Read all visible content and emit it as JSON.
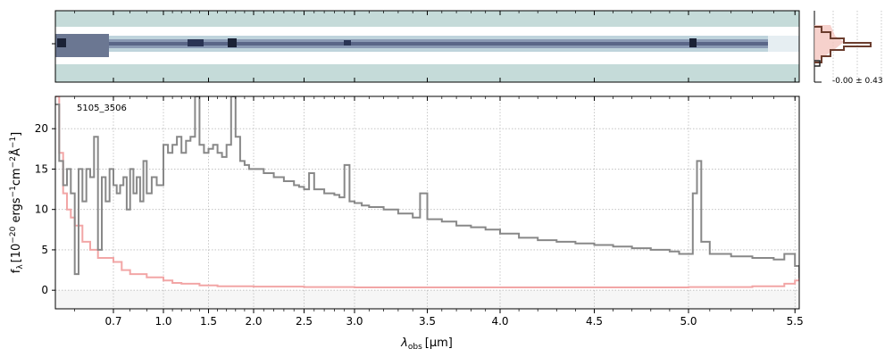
{
  "chart_data": {
    "type": "line",
    "object_id": "5105_3506",
    "xlabel_main": "λ",
    "xlabel_sub": "obs",
    "xlabel_unit": "[μm]",
    "ylabel_main": "f",
    "ylabel_sub": "λ",
    "ylabel_unit": "[10",
    "ylabel_exp": "−20",
    "ylabel_rest": " ergs",
    "ylabel_s": "−1",
    "ylabel_cm": "cm",
    "ylabel_cm_exp": "−2",
    "ylabel_A": "Å",
    "ylabel_A_exp": "−1",
    "ylabel_close": "]",
    "xlim": [
      0.55,
      5.52
    ],
    "ylim": [
      -2.3,
      24
    ],
    "xticks": [
      0.7,
      1.0,
      1.5,
      2.0,
      2.5,
      3.0,
      3.5,
      4.0,
      4.5,
      5.0,
      5.5
    ],
    "xtick_labels": [
      "0.7",
      "1.0",
      "1.5",
      "2.0",
      "2.5",
      "3.0",
      "3.5",
      "4.0",
      "4.5",
      "5.0",
      "5.5"
    ],
    "yticks": [
      0,
      5,
      10,
      15,
      20
    ],
    "ytick_labels": [
      "0",
      "5",
      "10",
      "15",
      "20"
    ],
    "grid": true,
    "series": [
      {
        "color": "#888888",
        "points": [
          [
            0.55,
            23
          ],
          [
            0.56,
            16
          ],
          [
            0.57,
            13
          ],
          [
            0.58,
            15
          ],
          [
            0.59,
            12
          ],
          [
            0.6,
            2
          ],
          [
            0.61,
            15
          ],
          [
            0.62,
            11
          ],
          [
            0.63,
            15
          ],
          [
            0.64,
            14
          ],
          [
            0.65,
            19
          ],
          [
            0.66,
            5
          ],
          [
            0.67,
            14
          ],
          [
            0.68,
            11
          ],
          [
            0.69,
            15
          ],
          [
            0.7,
            13
          ],
          [
            0.72,
            12
          ],
          [
            0.74,
            13
          ],
          [
            0.76,
            14
          ],
          [
            0.78,
            10
          ],
          [
            0.8,
            15
          ],
          [
            0.82,
            12
          ],
          [
            0.84,
            14
          ],
          [
            0.86,
            11
          ],
          [
            0.88,
            16
          ],
          [
            0.9,
            12
          ],
          [
            0.93,
            14
          ],
          [
            0.96,
            13
          ],
          [
            1.0,
            18
          ],
          [
            1.05,
            17
          ],
          [
            1.1,
            18
          ],
          [
            1.15,
            19
          ],
          [
            1.2,
            17
          ],
          [
            1.25,
            18.5
          ],
          [
            1.3,
            19
          ],
          [
            1.35,
            24
          ],
          [
            1.4,
            18
          ],
          [
            1.45,
            17
          ],
          [
            1.5,
            17.5
          ],
          [
            1.55,
            18
          ],
          [
            1.6,
            17
          ],
          [
            1.65,
            16.5
          ],
          [
            1.7,
            18
          ],
          [
            1.75,
            24
          ],
          [
            1.8,
            19
          ],
          [
            1.85,
            16
          ],
          [
            1.9,
            15.5
          ],
          [
            1.95,
            15
          ],
          [
            2.0,
            15
          ],
          [
            2.1,
            14.5
          ],
          [
            2.2,
            14
          ],
          [
            2.3,
            13.5
          ],
          [
            2.4,
            13
          ],
          [
            2.45,
            12.8
          ],
          [
            2.5,
            12.5
          ],
          [
            2.55,
            14.5
          ],
          [
            2.6,
            12.5
          ],
          [
            2.7,
            12
          ],
          [
            2.8,
            11.8
          ],
          [
            2.85,
            11.5
          ],
          [
            2.9,
            15.5
          ],
          [
            2.95,
            11
          ],
          [
            3.0,
            10.8
          ],
          [
            3.05,
            10.5
          ],
          [
            3.1,
            10.3
          ],
          [
            3.2,
            10
          ],
          [
            3.3,
            9.5
          ],
          [
            3.4,
            9
          ],
          [
            3.45,
            12
          ],
          [
            3.5,
            8.8
          ],
          [
            3.6,
            8.5
          ],
          [
            3.7,
            8
          ],
          [
            3.8,
            7.8
          ],
          [
            3.9,
            7.5
          ],
          [
            4.0,
            7
          ],
          [
            4.1,
            6.5
          ],
          [
            4.2,
            6.2
          ],
          [
            4.3,
            6
          ],
          [
            4.4,
            5.8
          ],
          [
            4.5,
            5.6
          ],
          [
            4.6,
            5.4
          ],
          [
            4.7,
            5.2
          ],
          [
            4.8,
            5
          ],
          [
            4.9,
            4.8
          ],
          [
            4.95,
            4.5
          ],
          [
            5.0,
            4.5
          ],
          [
            5.02,
            12
          ],
          [
            5.04,
            16
          ],
          [
            5.06,
            6
          ],
          [
            5.1,
            4.5
          ],
          [
            5.2,
            4.2
          ],
          [
            5.3,
            4
          ],
          [
            5.4,
            3.8
          ],
          [
            5.45,
            4.5
          ],
          [
            5.5,
            3
          ],
          [
            5.52,
            1.5
          ]
        ]
      },
      {
        "color": "#f2a6a6",
        "points": [
          [
            0.55,
            24
          ],
          [
            0.56,
            17
          ],
          [
            0.57,
            12
          ],
          [
            0.58,
            10
          ],
          [
            0.59,
            9
          ],
          [
            0.6,
            8
          ],
          [
            0.62,
            6
          ],
          [
            0.64,
            5
          ],
          [
            0.66,
            4
          ],
          [
            0.7,
            3.5
          ],
          [
            0.75,
            2.5
          ],
          [
            0.8,
            2
          ],
          [
            0.9,
            1.6
          ],
          [
            1.0,
            1.2
          ],
          [
            1.1,
            0.9
          ],
          [
            1.2,
            0.8
          ],
          [
            1.4,
            0.6
          ],
          [
            1.6,
            0.5
          ],
          [
            2.0,
            0.45
          ],
          [
            2.5,
            0.4
          ],
          [
            3.0,
            0.35
          ],
          [
            4.0,
            0.35
          ],
          [
            5.0,
            0.4
          ],
          [
            5.3,
            0.5
          ],
          [
            5.45,
            0.8
          ],
          [
            5.5,
            1.2
          ],
          [
            5.52,
            1.5
          ]
        ]
      }
    ],
    "hist_label": "-0.00 ± 0.43"
  }
}
